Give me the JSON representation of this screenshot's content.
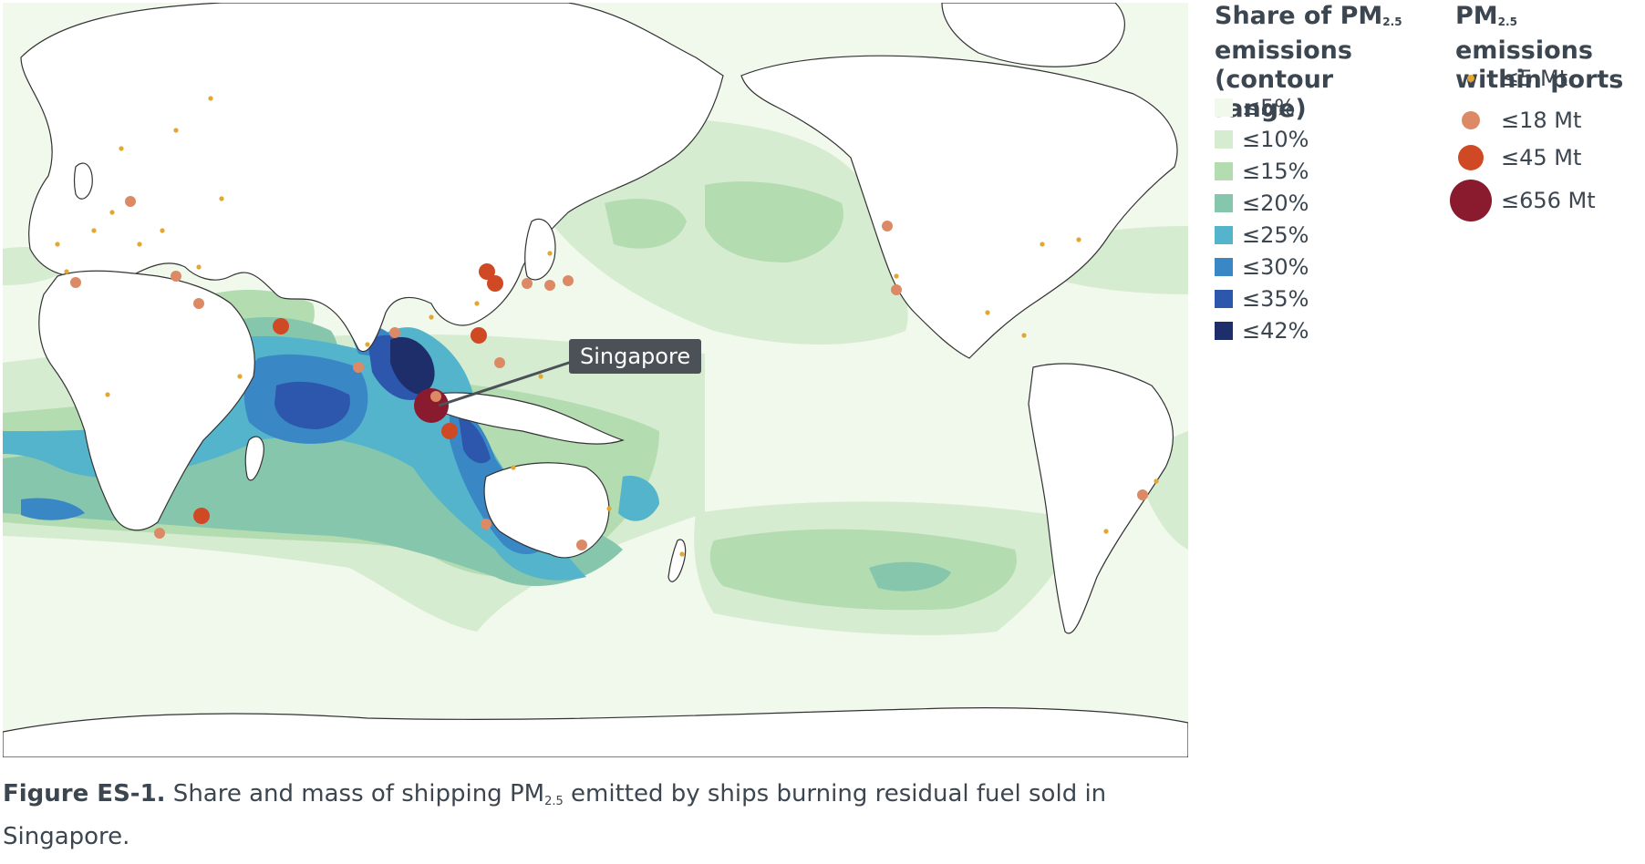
{
  "legend_share": {
    "title_part1": "Share of PM",
    "title_sub": "2.5",
    "title_part2": "emissions (contour range)",
    "items": [
      {
        "label": "≤5%",
        "color": "#f1f8ec"
      },
      {
        "label": "≤10%",
        "color": "#d6ecd0"
      },
      {
        "label": "≤15%",
        "color": "#b3dcb1"
      },
      {
        "label": "≤20%",
        "color": "#86c6ad"
      },
      {
        "label": "≤25%",
        "color": "#53b4cb"
      },
      {
        "label": "≤30%",
        "color": "#3a87c5"
      },
      {
        "label": "≤35%",
        "color": "#2d57ad"
      },
      {
        "label": "≤42%",
        "color": "#1d2e6b"
      }
    ]
  },
  "legend_ports": {
    "title_part1": "PM",
    "title_sub": "2.5",
    "title_part2": "emissions within ports",
    "items": [
      {
        "label": "≤5 Mt",
        "color": "#e3a630",
        "size": "small"
      },
      {
        "label": "≤18 Mt",
        "color": "#dc8a66",
        "size": "medium"
      },
      {
        "label": "≤45 Mt",
        "color": "#cf4a24",
        "size": "large"
      },
      {
        "label": "≤656 Mt",
        "color": "#8a1a2e",
        "size": "xlarge"
      }
    ]
  },
  "map": {
    "ocean_color": "#f1f8ec",
    "land_color": "#ffffff",
    "callout_label": "Singapore"
  },
  "caption": {
    "label": "Figure ES-1.",
    "text_part1": " Share and mass of shipping PM",
    "text_sub": "2.5",
    "text_part2": " emitted by ships burning residual fuel sold in Singapore."
  }
}
